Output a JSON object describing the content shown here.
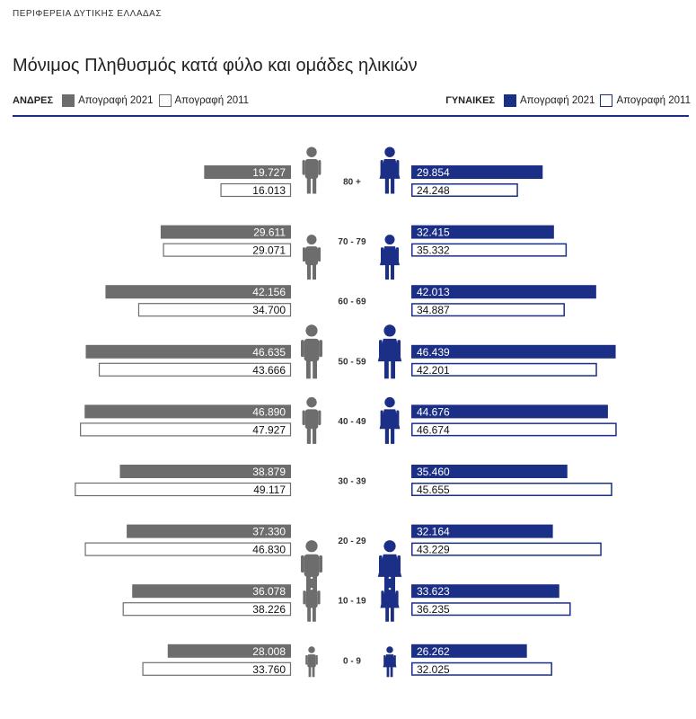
{
  "header": {
    "region": "ΠΕΡΙΦΕΡΕΙΑ ΔΥΤΙΚΗΣ ΕΛΛΑΔΑΣ",
    "title": "Μόνιμος Πληθυσμός κατά φύλο και ομάδες ηλικιών"
  },
  "legend": {
    "men_label": "ΑΝΔΡΕΣ",
    "women_label": "ΓΥΝΑΙΚΕΣ",
    "census_2021": "Απογραφή 2021",
    "census_2011": "Απογραφή 2011"
  },
  "colors": {
    "men": "#6d6d6d",
    "women": "#1c2f86",
    "outline_men": "#6d6d6d",
    "outline_women": "#1c2f86",
    "rule": "#1c2f86"
  },
  "chart_data": {
    "type": "bar",
    "orientation": "horizontal-population-pyramid",
    "categories": [
      "80 +",
      "70 - 79",
      "60 - 69",
      "50 - 59",
      "40 - 49",
      "30 - 39",
      "20 - 29",
      "10 - 19",
      "0 - 9"
    ],
    "series": [
      {
        "name": "ΑΝΔΡΕΣ Απογραφή 2021",
        "values": [
          19727,
          29611,
          42156,
          46635,
          46890,
          38879,
          37330,
          36078,
          28008
        ],
        "labels": [
          "19.727",
          "29.611",
          "42.156",
          "46.635",
          "46.890",
          "38.879",
          "37.330",
          "36.078",
          "28.008"
        ]
      },
      {
        "name": "ΑΝΔΡΕΣ Απογραφή 2011",
        "values": [
          16013,
          29071,
          34700,
          43666,
          47927,
          49117,
          46830,
          38226,
          33760
        ],
        "labels": [
          "16.013",
          "29.071",
          "34.700",
          "43.666",
          "47.927",
          "49.117",
          "46.830",
          "38.226",
          "33.760"
        ]
      },
      {
        "name": "ΓΥΝΑΙΚΕΣ Απογραφή 2021",
        "values": [
          29854,
          32415,
          42013,
          46439,
          44676,
          35460,
          32164,
          33623,
          26262
        ],
        "labels": [
          "29.854",
          "32.415",
          "42.013",
          "46.439",
          "44.676",
          "35.460",
          "32.164",
          "33.623",
          "26.262"
        ]
      },
      {
        "name": "ΓΥΝΑΙΚΕΣ Απογραφή 2011",
        "values": [
          24248,
          35332,
          34887,
          42201,
          46674,
          45655,
          43229,
          36235,
          32025
        ],
        "labels": [
          "24.248",
          "35.332",
          "34.887",
          "42.201",
          "46.674",
          "45.655",
          "43.229",
          "36.235",
          "32.025"
        ]
      }
    ]
  }
}
